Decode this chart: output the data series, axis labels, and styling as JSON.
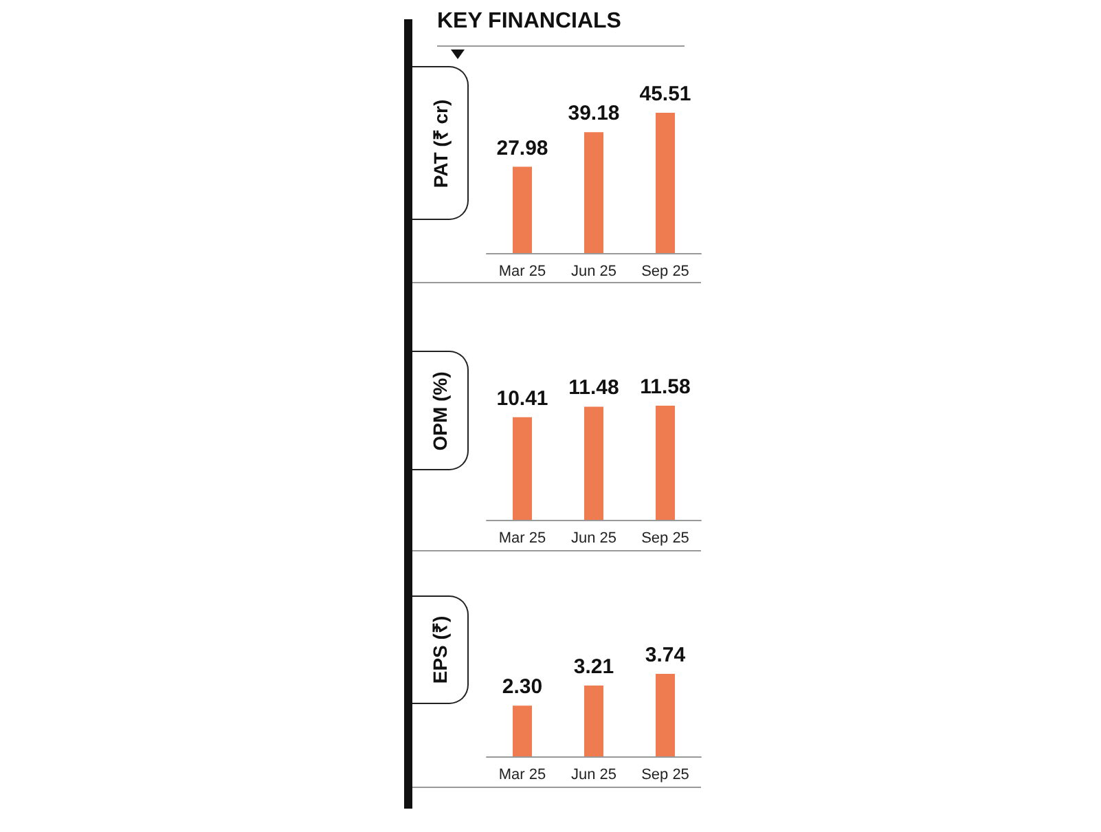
{
  "chart_data": [
    {
      "type": "bar",
      "title": "KEY FINANCIALS",
      "ylabel": "PAT (₹ cr)",
      "categories": [
        "Mar 25",
        "Jun 25",
        "Sep 25"
      ],
      "values": [
        27.98,
        39.18,
        45.51
      ],
      "color": "#ef7b50",
      "data_labels": true,
      "tick_labels": "x"
    },
    {
      "type": "bar",
      "ylabel": "OPM (%)",
      "categories": [
        "Mar 25",
        "Jun 25",
        "Sep 25"
      ],
      "values": [
        10.41,
        11.48,
        11.58
      ],
      "color": "#ef7b50",
      "data_labels": true,
      "tick_labels": "x"
    },
    {
      "type": "bar",
      "ylabel": "EPS (₹)",
      "categories": [
        "Mar 25",
        "Jun 25",
        "Sep 25"
      ],
      "values": [
        2.3,
        3.21,
        3.74
      ],
      "value_labels": [
        "2.30",
        "3.21",
        "3.74"
      ],
      "color": "#ef7b50",
      "tick_labels": "x"
    }
  ]
}
